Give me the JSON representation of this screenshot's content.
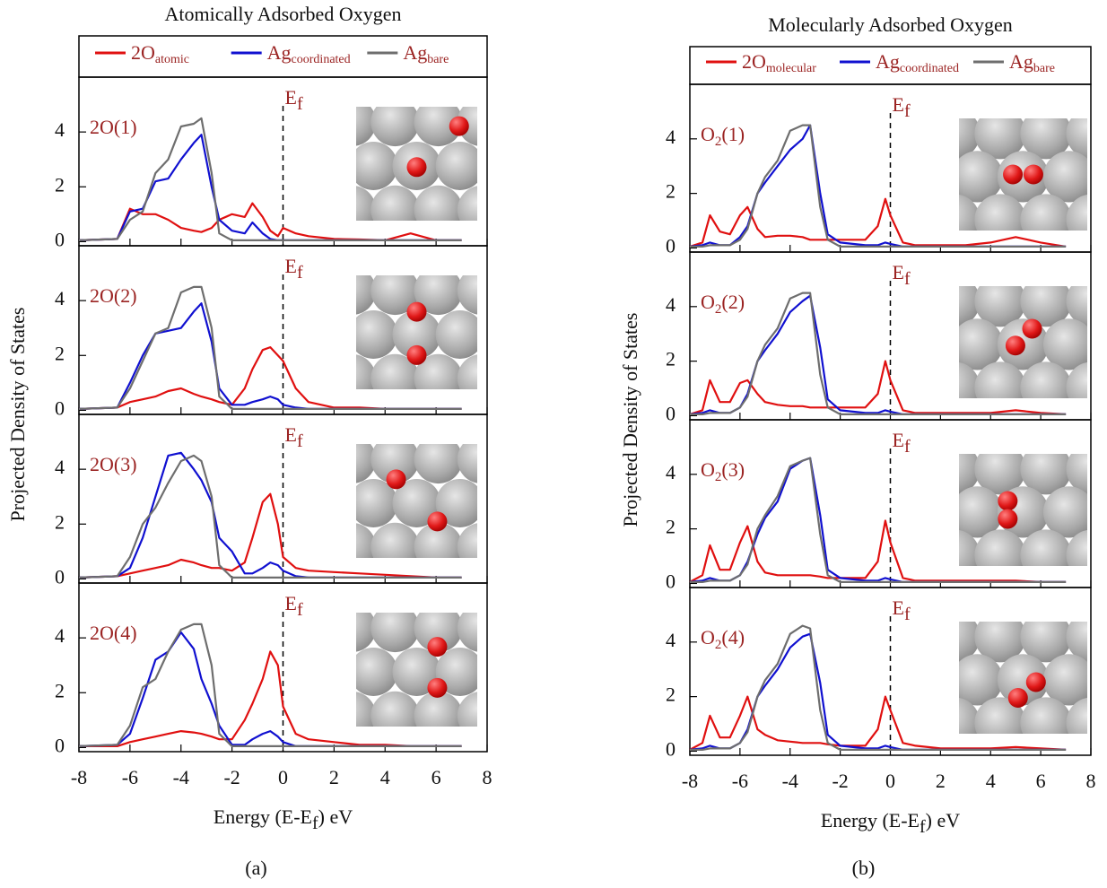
{
  "chart_data": [
    {
      "type": "line",
      "title": "Atomically Adsorbed Oxygen",
      "caption": "(a)",
      "y_label": "Projected Density of States",
      "x_label_parts": [
        "Energy (E-E",
        "f",
        ") eV"
      ],
      "series": [
        {
          "name_parts": [
            "2O",
            "atomic"
          ],
          "color": "#e01010"
        },
        {
          "name_parts": [
            "Ag",
            "coordinated"
          ],
          "color": "#1010d0"
        },
        {
          "name_parts": [
            "Ag",
            "bare"
          ],
          "color": "#6e6e6e"
        }
      ],
      "xlim": [
        -8,
        8
      ],
      "xticks": [
        -8,
        -6,
        -4,
        -2,
        0,
        2,
        4,
        6,
        8
      ],
      "ylim": [
        -0.15,
        6.0
      ],
      "yticks": [
        0,
        2,
        4
      ],
      "fermi": 0,
      "x": [
        -8,
        -6.5,
        -6,
        -5.5,
        -5,
        -4.5,
        -4,
        -3.5,
        -3.2,
        -2.8,
        -2.5,
        -2,
        -1.5,
        -1.2,
        -0.8,
        -0.5,
        -0.2,
        0,
        0.5,
        1,
        2,
        3,
        4,
        5,
        6,
        7
      ],
      "subplots": [
        {
          "label_parts": [
            "2O(1)"
          ],
          "ef_parts": [
            "E",
            "f"
          ],
          "values": [
            [
              0.05,
              0.1,
              1.2,
              1.0,
              1.0,
              0.8,
              0.5,
              0.4,
              0.35,
              0.5,
              0.8,
              1.0,
              0.9,
              1.4,
              0.9,
              0.4,
              0.2,
              0.5,
              0.3,
              0.2,
              0.1,
              0.08,
              0.05,
              0.3,
              0.05,
              0.05
            ],
            [
              0.05,
              0.1,
              1.1,
              1.2,
              2.2,
              2.3,
              3.0,
              3.6,
              3.9,
              2.0,
              0.8,
              0.4,
              0.3,
              0.7,
              0.3,
              0.1,
              0.05,
              0.05,
              0.05,
              0.05,
              0.05,
              0.05,
              0.05,
              0.05,
              0.05,
              0.05
            ],
            [
              0.05,
              0.1,
              0.8,
              1.1,
              2.5,
              3.0,
              4.2,
              4.3,
              4.5,
              2.5,
              0.3,
              0.05,
              0.05,
              0.05,
              0.05,
              0.05,
              0.05,
              0.05,
              0.05,
              0.05,
              0.05,
              0.05,
              0.05,
              0.05,
              0.05,
              0.05
            ]
          ]
        },
        {
          "label_parts": [
            "2O(2)"
          ],
          "ef_parts": [
            "E",
            "f"
          ],
          "values": [
            [
              0.05,
              0.1,
              0.3,
              0.4,
              0.5,
              0.7,
              0.8,
              0.6,
              0.5,
              0.4,
              0.3,
              0.2,
              0.8,
              1.5,
              2.2,
              2.3,
              2.0,
              1.8,
              0.8,
              0.3,
              0.1,
              0.1,
              0.05,
              0.05,
              0.05,
              0.05
            ],
            [
              0.05,
              0.1,
              1.0,
              2.0,
              2.8,
              2.9,
              3.0,
              3.6,
              3.9,
              2.5,
              0.8,
              0.2,
              0.2,
              0.3,
              0.4,
              0.5,
              0.4,
              0.2,
              0.1,
              0.05,
              0.05,
              0.05,
              0.05,
              0.05,
              0.05,
              0.05
            ],
            [
              0.05,
              0.1,
              0.8,
              1.8,
              2.8,
              3.0,
              4.3,
              4.5,
              4.5,
              3.0,
              0.5,
              0.05,
              0.05,
              0.05,
              0.05,
              0.05,
              0.05,
              0.05,
              0.05,
              0.05,
              0.05,
              0.05,
              0.05,
              0.05,
              0.05,
              0.05
            ]
          ]
        },
        {
          "label_parts": [
            "2O(3)"
          ],
          "ef_parts": [
            "E",
            "f"
          ],
          "values": [
            [
              0.05,
              0.1,
              0.2,
              0.3,
              0.4,
              0.5,
              0.7,
              0.6,
              0.5,
              0.4,
              0.4,
              0.3,
              0.6,
              1.5,
              2.8,
              3.1,
              2.0,
              0.8,
              0.4,
              0.3,
              0.25,
              0.2,
              0.15,
              0.1,
              0.05,
              0.05
            ],
            [
              0.05,
              0.1,
              0.4,
              1.5,
              3.0,
              4.5,
              4.6,
              4.0,
              3.6,
              2.8,
              1.5,
              1.0,
              0.2,
              0.2,
              0.4,
              0.6,
              0.5,
              0.3,
              0.1,
              0.05,
              0.05,
              0.05,
              0.05,
              0.05,
              0.05,
              0.05
            ],
            [
              0.05,
              0.1,
              0.8,
              2.0,
              2.6,
              3.5,
              4.3,
              4.5,
              4.3,
              3.0,
              0.5,
              0.05,
              0.05,
              0.05,
              0.05,
              0.05,
              0.05,
              0.05,
              0.05,
              0.05,
              0.05,
              0.05,
              0.05,
              0.05,
              0.05,
              0.05
            ]
          ]
        },
        {
          "label_parts": [
            "2O(4)"
          ],
          "ef_parts": [
            "E",
            "f"
          ],
          "values": [
            [
              0.05,
              0.05,
              0.2,
              0.3,
              0.4,
              0.5,
              0.6,
              0.55,
              0.5,
              0.4,
              0.3,
              0.3,
              1.0,
              1.6,
              2.5,
              3.5,
              3.0,
              1.5,
              0.5,
              0.3,
              0.2,
              0.1,
              0.1,
              0.05,
              0.05,
              0.05
            ],
            [
              0.05,
              0.1,
              0.5,
              1.8,
              3.2,
              3.5,
              4.2,
              3.6,
              2.5,
              1.6,
              0.8,
              0.1,
              0.1,
              0.3,
              0.5,
              0.6,
              0.4,
              0.2,
              0.05,
              0.05,
              0.05,
              0.05,
              0.05,
              0.05,
              0.05,
              0.05
            ],
            [
              0.05,
              0.1,
              0.8,
              2.2,
              2.5,
              3.5,
              4.3,
              4.5,
              4.5,
              3.0,
              0.5,
              0.05,
              0.05,
              0.05,
              0.05,
              0.05,
              0.05,
              0.05,
              0.05,
              0.05,
              0.05,
              0.05,
              0.05,
              0.05,
              0.05,
              0.05
            ]
          ]
        }
      ]
    },
    {
      "type": "line",
      "title": "Molecularly Adsorbed Oxygen",
      "caption": "(b)",
      "y_label": "Projected Density of States",
      "x_label_parts": [
        "Energy (E-E",
        "f",
        ") eV"
      ],
      "series": [
        {
          "name_parts": [
            "2O",
            "molecular"
          ],
          "color": "#e01010"
        },
        {
          "name_parts": [
            "Ag",
            "coordinated"
          ],
          "color": "#1010d0"
        },
        {
          "name_parts": [
            "Ag",
            "bare"
          ],
          "color": "#6e6e6e"
        }
      ],
      "xlim": [
        -8,
        8
      ],
      "xticks": [
        -8,
        -6,
        -4,
        -2,
        0,
        2,
        4,
        6,
        8
      ],
      "ylim": [
        -0.15,
        6.0
      ],
      "yticks": [
        0,
        2,
        4
      ],
      "fermi": 0,
      "x": [
        -8,
        -7.5,
        -7.2,
        -6.8,
        -6.4,
        -6,
        -5.7,
        -5.3,
        -5,
        -4.5,
        -4,
        -3.5,
        -3.2,
        -2.8,
        -2.5,
        -2,
        -1,
        -0.5,
        -0.2,
        0,
        0.5,
        1,
        2,
        3,
        4,
        5,
        6,
        7
      ],
      "subplots": [
        {
          "label_parts": [
            "O",
            "2",
            "(1)"
          ],
          "ef_parts": [
            "E",
            "f"
          ],
          "values": [
            [
              0.05,
              0.2,
              1.2,
              0.6,
              0.5,
              1.2,
              1.5,
              0.7,
              0.4,
              0.45,
              0.45,
              0.4,
              0.3,
              0.3,
              0.3,
              0.3,
              0.3,
              0.8,
              1.8,
              1.2,
              0.2,
              0.1,
              0.1,
              0.1,
              0.2,
              0.4,
              0.2,
              0.05
            ],
            [
              0.05,
              0.1,
              0.2,
              0.1,
              0.1,
              0.4,
              0.8,
              2.0,
              2.4,
              3.0,
              3.6,
              4.0,
              4.5,
              2.0,
              0.5,
              0.2,
              0.1,
              0.1,
              0.2,
              0.15,
              0.05,
              0.05,
              0.05,
              0.05,
              0.05,
              0.05,
              0.05,
              0.05
            ],
            [
              0.05,
              0.05,
              0.1,
              0.1,
              0.1,
              0.3,
              0.7,
              2.0,
              2.6,
              3.2,
              4.3,
              4.5,
              4.5,
              1.5,
              0.3,
              0.05,
              0.05,
              0.05,
              0.05,
              0.05,
              0.05,
              0.05,
              0.05,
              0.05,
              0.05,
              0.05,
              0.05,
              0.05
            ]
          ]
        },
        {
          "label_parts": [
            "O",
            "2",
            "(2)"
          ],
          "ef_parts": [
            "E",
            "f"
          ],
          "values": [
            [
              0.05,
              0.2,
              1.3,
              0.5,
              0.5,
              1.2,
              1.3,
              0.8,
              0.5,
              0.4,
              0.35,
              0.35,
              0.3,
              0.3,
              0.3,
              0.3,
              0.3,
              0.8,
              2.0,
              1.3,
              0.2,
              0.1,
              0.1,
              0.1,
              0.1,
              0.2,
              0.1,
              0.05
            ],
            [
              0.05,
              0.1,
              0.2,
              0.1,
              0.1,
              0.3,
              0.8,
              2.0,
              2.4,
              3.0,
              3.8,
              4.2,
              4.4,
              2.5,
              0.6,
              0.2,
              0.1,
              0.1,
              0.2,
              0.15,
              0.05,
              0.05,
              0.05,
              0.05,
              0.05,
              0.05,
              0.05,
              0.05
            ],
            [
              0.05,
              0.05,
              0.1,
              0.1,
              0.1,
              0.3,
              0.7,
              2.0,
              2.6,
              3.2,
              4.3,
              4.5,
              4.5,
              1.5,
              0.3,
              0.05,
              0.05,
              0.05,
              0.05,
              0.05,
              0.05,
              0.05,
              0.05,
              0.05,
              0.05,
              0.05,
              0.05,
              0.05
            ]
          ]
        },
        {
          "label_parts": [
            "O",
            "2",
            "(3)"
          ],
          "ef_parts": [
            "E",
            "f"
          ],
          "values": [
            [
              0.05,
              0.3,
              1.4,
              0.5,
              0.5,
              1.5,
              2.1,
              0.8,
              0.4,
              0.3,
              0.3,
              0.3,
              0.3,
              0.25,
              0.2,
              0.2,
              0.2,
              0.8,
              2.3,
              1.5,
              0.2,
              0.1,
              0.1,
              0.1,
              0.1,
              0.1,
              0.05,
              0.05
            ],
            [
              0.05,
              0.1,
              0.2,
              0.1,
              0.1,
              0.3,
              0.8,
              1.8,
              2.4,
              3.0,
              4.2,
              4.5,
              4.6,
              2.5,
              0.5,
              0.2,
              0.1,
              0.1,
              0.2,
              0.15,
              0.05,
              0.05,
              0.05,
              0.05,
              0.05,
              0.05,
              0.05,
              0.05
            ],
            [
              0.05,
              0.05,
              0.1,
              0.1,
              0.1,
              0.3,
              0.7,
              2.0,
              2.5,
              3.2,
              4.3,
              4.5,
              4.6,
              1.8,
              0.3,
              0.05,
              0.05,
              0.05,
              0.05,
              0.05,
              0.05,
              0.05,
              0.05,
              0.05,
              0.05,
              0.05,
              0.05,
              0.05
            ]
          ]
        },
        {
          "label_parts": [
            "O",
            "2",
            "(4)"
          ],
          "ef_parts": [
            "E",
            "f"
          ],
          "values": [
            [
              0.05,
              0.3,
              1.3,
              0.5,
              0.5,
              1.3,
              2.0,
              0.8,
              0.6,
              0.4,
              0.35,
              0.3,
              0.3,
              0.3,
              0.25,
              0.2,
              0.2,
              0.8,
              2.0,
              1.5,
              0.3,
              0.2,
              0.1,
              0.1,
              0.1,
              0.15,
              0.1,
              0.05
            ],
            [
              0.05,
              0.1,
              0.2,
              0.1,
              0.1,
              0.3,
              0.8,
              2.0,
              2.4,
              3.0,
              3.8,
              4.2,
              4.3,
              2.5,
              0.6,
              0.2,
              0.1,
              0.1,
              0.2,
              0.15,
              0.05,
              0.05,
              0.05,
              0.05,
              0.05,
              0.05,
              0.05,
              0.05
            ],
            [
              0.05,
              0.05,
              0.1,
              0.1,
              0.1,
              0.3,
              0.7,
              2.0,
              2.6,
              3.2,
              4.3,
              4.6,
              4.5,
              1.5,
              0.3,
              0.05,
              0.05,
              0.05,
              0.05,
              0.05,
              0.05,
              0.05,
              0.05,
              0.05,
              0.05,
              0.05,
              0.05,
              0.05
            ]
          ]
        }
      ]
    }
  ]
}
